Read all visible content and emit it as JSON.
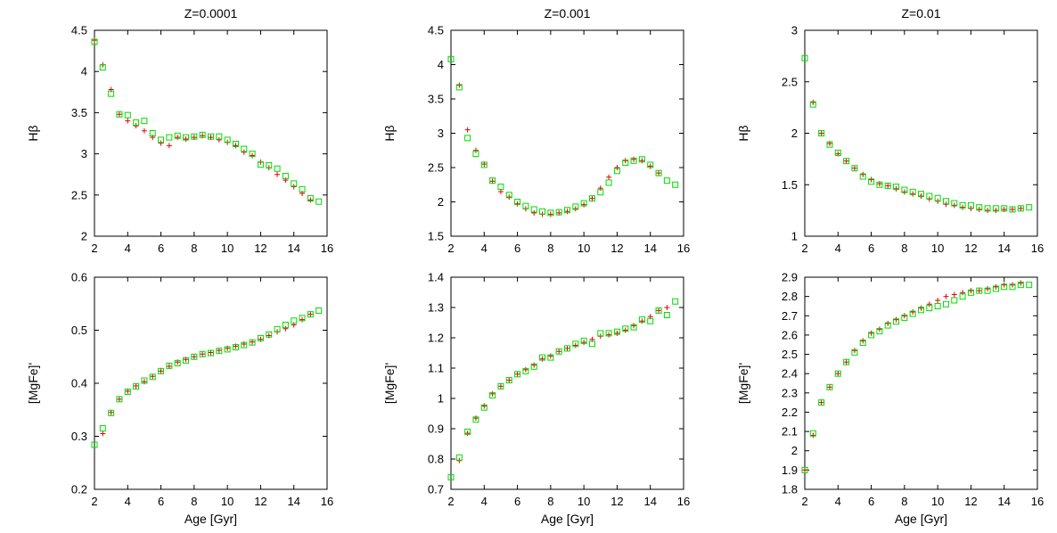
{
  "chart_data": [
    {
      "type": "scatter",
      "title": "Z=0.0001",
      "xlabel": "",
      "ylabel": "Hβ",
      "xlim": [
        2,
        16
      ],
      "ylim": [
        2,
        4.5
      ],
      "xticks": [
        "2",
        "4",
        "6",
        "8",
        "10",
        "12",
        "14",
        "16"
      ],
      "yticks": [
        "2",
        "2.5",
        "3",
        "3.5",
        "4",
        "4.5"
      ],
      "series": [
        {
          "color": "#e8000b",
          "marker": "plus",
          "x": [
            2.0,
            2.5,
            3.0,
            3.5,
            4.0,
            4.5,
            5.0,
            5.5,
            6.0,
            6.5,
            7.0,
            7.5,
            8.0,
            8.5,
            9.0,
            9.5,
            10.0,
            10.5,
            11.0,
            11.5,
            12.0,
            12.5,
            13.0,
            13.5,
            14.0,
            14.5,
            15.0
          ],
          "y": [
            4.38,
            4.08,
            3.78,
            3.48,
            3.4,
            3.34,
            3.28,
            3.2,
            3.13,
            3.1,
            3.2,
            3.18,
            3.2,
            3.22,
            3.2,
            3.17,
            3.14,
            3.1,
            3.02,
            2.98,
            2.9,
            2.83,
            2.75,
            2.68,
            2.6,
            2.52,
            2.44
          ]
        },
        {
          "color": "#00dd00",
          "marker": "square",
          "x": [
            2.0,
            2.5,
            3.0,
            3.5,
            4.0,
            4.5,
            5.0,
            5.5,
            6.0,
            6.5,
            7.0,
            7.5,
            8.0,
            8.5,
            9.0,
            9.5,
            10.0,
            10.5,
            11.0,
            11.5,
            12.0,
            12.5,
            13.0,
            13.5,
            14.0,
            14.5,
            15.0,
            15.5
          ],
          "y": [
            4.36,
            4.05,
            3.73,
            3.48,
            3.47,
            3.38,
            3.4,
            3.25,
            3.17,
            3.2,
            3.22,
            3.2,
            3.21,
            3.23,
            3.21,
            3.21,
            3.17,
            3.12,
            3.06,
            3.0,
            2.87,
            2.86,
            2.82,
            2.73,
            2.64,
            2.57,
            2.46,
            2.42
          ]
        }
      ]
    },
    {
      "type": "scatter",
      "title": "Z=0.001",
      "xlabel": "",
      "ylabel": "Hβ",
      "xlim": [
        2,
        16
      ],
      "ylim": [
        1.5,
        4.5
      ],
      "xticks": [
        "2",
        "4",
        "6",
        "8",
        "10",
        "12",
        "14",
        "16"
      ],
      "yticks": [
        "1.5",
        "2",
        "2.5",
        "3",
        "3.5",
        "4",
        "4.5"
      ],
      "series": [
        {
          "color": "#e8000b",
          "marker": "plus",
          "x": [
            2.5,
            3.0,
            3.5,
            4.0,
            4.5,
            5.0,
            5.5,
            6.0,
            6.5,
            7.0,
            7.5,
            8.0,
            8.5,
            9.0,
            9.5,
            10.0,
            10.5,
            11.0,
            11.5,
            12.0,
            12.5,
            13.0,
            13.5,
            14.0,
            14.5
          ],
          "y": [
            3.7,
            3.05,
            2.75,
            2.55,
            2.3,
            2.15,
            2.07,
            1.97,
            1.9,
            1.84,
            1.82,
            1.82,
            1.84,
            1.86,
            1.9,
            1.96,
            2.05,
            2.2,
            2.36,
            2.5,
            2.6,
            2.62,
            2.6,
            2.52,
            2.42
          ]
        },
        {
          "color": "#00dd00",
          "marker": "square",
          "x": [
            2.0,
            2.5,
            3.0,
            3.5,
            4.0,
            4.5,
            5.0,
            5.5,
            6.0,
            6.5,
            7.0,
            7.5,
            8.0,
            8.5,
            9.0,
            9.5,
            10.0,
            10.5,
            11.0,
            11.5,
            12.0,
            12.5,
            13.0,
            13.5,
            14.0,
            14.5,
            15.0,
            15.5
          ],
          "y": [
            4.08,
            3.67,
            2.93,
            2.7,
            2.54,
            2.31,
            2.22,
            2.1,
            2.0,
            1.94,
            1.89,
            1.86,
            1.84,
            1.85,
            1.88,
            1.93,
            1.98,
            2.05,
            2.14,
            2.28,
            2.45,
            2.57,
            2.6,
            2.62,
            2.54,
            2.42,
            2.31,
            2.25
          ]
        }
      ]
    },
    {
      "type": "scatter",
      "title": "Z=0.01",
      "xlabel": "",
      "ylabel": "Hβ",
      "xlim": [
        2,
        16
      ],
      "ylim": [
        1,
        3
      ],
      "xticks": [
        "2",
        "4",
        "6",
        "8",
        "10",
        "12",
        "14",
        "16"
      ],
      "yticks": [
        "1",
        "1.5",
        "2",
        "2.5",
        "3"
      ],
      "series": [
        {
          "color": "#e8000b",
          "marker": "plus",
          "x": [
            2.5,
            3.0,
            3.5,
            4.0,
            4.5,
            5.0,
            5.5,
            6.0,
            6.5,
            7.0,
            7.5,
            8.0,
            8.5,
            9.0,
            9.5,
            10.0,
            10.5,
            11.0,
            11.5,
            12.0,
            12.5,
            13.0,
            13.5,
            14.0,
            14.5,
            15.0
          ],
          "y": [
            2.3,
            2.0,
            1.9,
            1.8,
            1.73,
            1.66,
            1.6,
            1.55,
            1.51,
            1.49,
            1.46,
            1.43,
            1.41,
            1.39,
            1.36,
            1.34,
            1.31,
            1.3,
            1.28,
            1.27,
            1.26,
            1.25,
            1.25,
            1.26,
            1.26,
            1.27
          ]
        },
        {
          "color": "#00dd00",
          "marker": "square",
          "x": [
            2.0,
            2.5,
            3.0,
            3.5,
            4.0,
            4.5,
            5.0,
            5.5,
            6.0,
            6.5,
            7.0,
            7.5,
            8.0,
            8.5,
            9.0,
            9.5,
            10.0,
            10.5,
            11.0,
            11.5,
            12.0,
            12.5,
            13.0,
            13.5,
            14.0,
            14.5,
            15.0,
            15.5
          ],
          "y": [
            2.73,
            2.28,
            2.0,
            1.89,
            1.81,
            1.73,
            1.66,
            1.58,
            1.53,
            1.5,
            1.49,
            1.48,
            1.45,
            1.43,
            1.41,
            1.39,
            1.37,
            1.34,
            1.32,
            1.3,
            1.3,
            1.28,
            1.27,
            1.27,
            1.27,
            1.26,
            1.27,
            1.28
          ]
        }
      ]
    },
    {
      "type": "scatter",
      "title": "",
      "xlabel": "Age [Gyr]",
      "ylabel": "[MgFe]'",
      "xlim": [
        2,
        16
      ],
      "ylim": [
        0.2,
        0.6
      ],
      "xticks": [
        "2",
        "4",
        "6",
        "8",
        "10",
        "12",
        "14",
        "16"
      ],
      "yticks": [
        "0.2",
        "0.3",
        "0.4",
        "0.5",
        "0.6"
      ],
      "series": [
        {
          "color": "#e8000b",
          "marker": "plus",
          "x": [
            2.5,
            3.0,
            3.5,
            4.0,
            4.5,
            5.0,
            5.5,
            6.0,
            6.5,
            7.0,
            7.5,
            8.0,
            8.5,
            9.0,
            9.5,
            10.0,
            10.5,
            11.0,
            11.5,
            12.0,
            12.5,
            13.0,
            13.5,
            14.0,
            14.5,
            15.0
          ],
          "y": [
            0.305,
            0.345,
            0.37,
            0.385,
            0.395,
            0.403,
            0.413,
            0.423,
            0.432,
            0.44,
            0.445,
            0.45,
            0.455,
            0.458,
            0.462,
            0.466,
            0.47,
            0.474,
            0.478,
            0.483,
            0.49,
            0.497,
            0.503,
            0.51,
            0.52,
            0.53
          ]
        },
        {
          "color": "#00dd00",
          "marker": "square",
          "x": [
            2.0,
            2.5,
            3.0,
            3.5,
            4.0,
            4.5,
            5.0,
            5.5,
            6.0,
            6.5,
            7.0,
            7.5,
            8.0,
            8.5,
            9.0,
            9.5,
            10.0,
            10.5,
            11.0,
            11.5,
            12.0,
            12.5,
            13.0,
            13.5,
            14.0,
            14.5,
            15.0,
            15.5
          ],
          "y": [
            0.284,
            0.315,
            0.344,
            0.37,
            0.384,
            0.394,
            0.405,
            0.412,
            0.423,
            0.433,
            0.438,
            0.443,
            0.45,
            0.455,
            0.457,
            0.461,
            0.464,
            0.468,
            0.472,
            0.477,
            0.485,
            0.492,
            0.502,
            0.51,
            0.518,
            0.523,
            0.53,
            0.537
          ]
        }
      ]
    },
    {
      "type": "scatter",
      "title": "",
      "xlabel": "Age [Gyr]",
      "ylabel": "[MgFe]'",
      "xlim": [
        2,
        16
      ],
      "ylim": [
        0.7,
        1.4
      ],
      "xticks": [
        "2",
        "4",
        "6",
        "8",
        "10",
        "12",
        "14",
        "16"
      ],
      "yticks": [
        "0.7",
        "0.8",
        "0.9",
        "1",
        "1.1",
        "1.2",
        "1.3",
        "1.4"
      ],
      "series": [
        {
          "color": "#e8000b",
          "marker": "plus",
          "x": [
            2.5,
            3.0,
            3.5,
            4.0,
            4.5,
            5.0,
            5.5,
            6.0,
            6.5,
            7.0,
            7.5,
            8.0,
            8.5,
            9.0,
            9.5,
            10.0,
            10.5,
            11.0,
            11.5,
            12.0,
            12.5,
            13.0,
            13.5,
            14.0,
            14.5,
            15.0
          ],
          "y": [
            0.795,
            0.885,
            0.935,
            0.975,
            1.015,
            1.04,
            1.06,
            1.08,
            1.095,
            1.11,
            1.13,
            1.14,
            1.155,
            1.165,
            1.175,
            1.185,
            1.195,
            1.205,
            1.21,
            1.215,
            1.225,
            1.24,
            1.255,
            1.27,
            1.29,
            1.3
          ]
        },
        {
          "color": "#00dd00",
          "marker": "square",
          "x": [
            2.0,
            2.5,
            3.0,
            3.5,
            4.0,
            4.5,
            5.0,
            5.5,
            6.0,
            6.5,
            7.0,
            7.5,
            8.0,
            8.5,
            9.0,
            9.5,
            10.0,
            10.5,
            11.0,
            11.5,
            12.0,
            12.5,
            13.0,
            13.5,
            14.0,
            14.5,
            15.0,
            15.5
          ],
          "y": [
            0.74,
            0.805,
            0.89,
            0.93,
            0.97,
            1.01,
            1.04,
            1.06,
            1.08,
            1.09,
            1.105,
            1.135,
            1.135,
            1.155,
            1.165,
            1.18,
            1.19,
            1.18,
            1.215,
            1.215,
            1.22,
            1.23,
            1.235,
            1.26,
            1.255,
            1.29,
            1.275,
            1.32
          ]
        }
      ]
    },
    {
      "type": "scatter",
      "title": "",
      "xlabel": "Age [Gyr]",
      "ylabel": "[MgFe]'",
      "xlim": [
        2,
        16
      ],
      "ylim": [
        1.8,
        2.9
      ],
      "xticks": [
        "2",
        "4",
        "6",
        "8",
        "10",
        "12",
        "14",
        "16"
      ],
      "yticks": [
        "1.8",
        "1.9",
        "2",
        "2.1",
        "2.2",
        "2.3",
        "2.4",
        "2.5",
        "2.6",
        "2.7",
        "2.8",
        "2.9"
      ],
      "series": [
        {
          "color": "#e8000b",
          "marker": "plus",
          "x": [
            2.0,
            2.5,
            3.0,
            3.5,
            4.0,
            4.5,
            5.0,
            5.5,
            6.0,
            6.5,
            7.0,
            7.5,
            8.0,
            8.5,
            9.0,
            9.5,
            10.0,
            10.5,
            11.0,
            11.5,
            12.0,
            12.5,
            13.0,
            13.5,
            14.0,
            14.5,
            15.0
          ],
          "y": [
            1.9,
            2.08,
            2.25,
            2.33,
            2.4,
            2.46,
            2.52,
            2.57,
            2.61,
            2.63,
            2.66,
            2.68,
            2.7,
            2.72,
            2.74,
            2.76,
            2.78,
            2.8,
            2.81,
            2.82,
            2.83,
            2.83,
            2.84,
            2.85,
            2.86,
            2.86,
            2.87
          ]
        },
        {
          "color": "#00dd00",
          "marker": "square",
          "x": [
            2.0,
            2.5,
            3.0,
            3.5,
            4.0,
            4.5,
            5.0,
            5.5,
            6.0,
            6.5,
            7.0,
            7.5,
            8.0,
            8.5,
            9.0,
            9.5,
            10.0,
            10.5,
            11.0,
            11.5,
            12.0,
            12.5,
            13.0,
            13.5,
            14.0,
            14.5,
            15.0,
            15.5
          ],
          "y": [
            1.9,
            2.09,
            2.25,
            2.33,
            2.4,
            2.46,
            2.51,
            2.56,
            2.6,
            2.62,
            2.65,
            2.67,
            2.69,
            2.71,
            2.73,
            2.74,
            2.75,
            2.76,
            2.78,
            2.8,
            2.82,
            2.83,
            2.83,
            2.84,
            2.85,
            2.85,
            2.86,
            2.86
          ]
        }
      ]
    }
  ]
}
